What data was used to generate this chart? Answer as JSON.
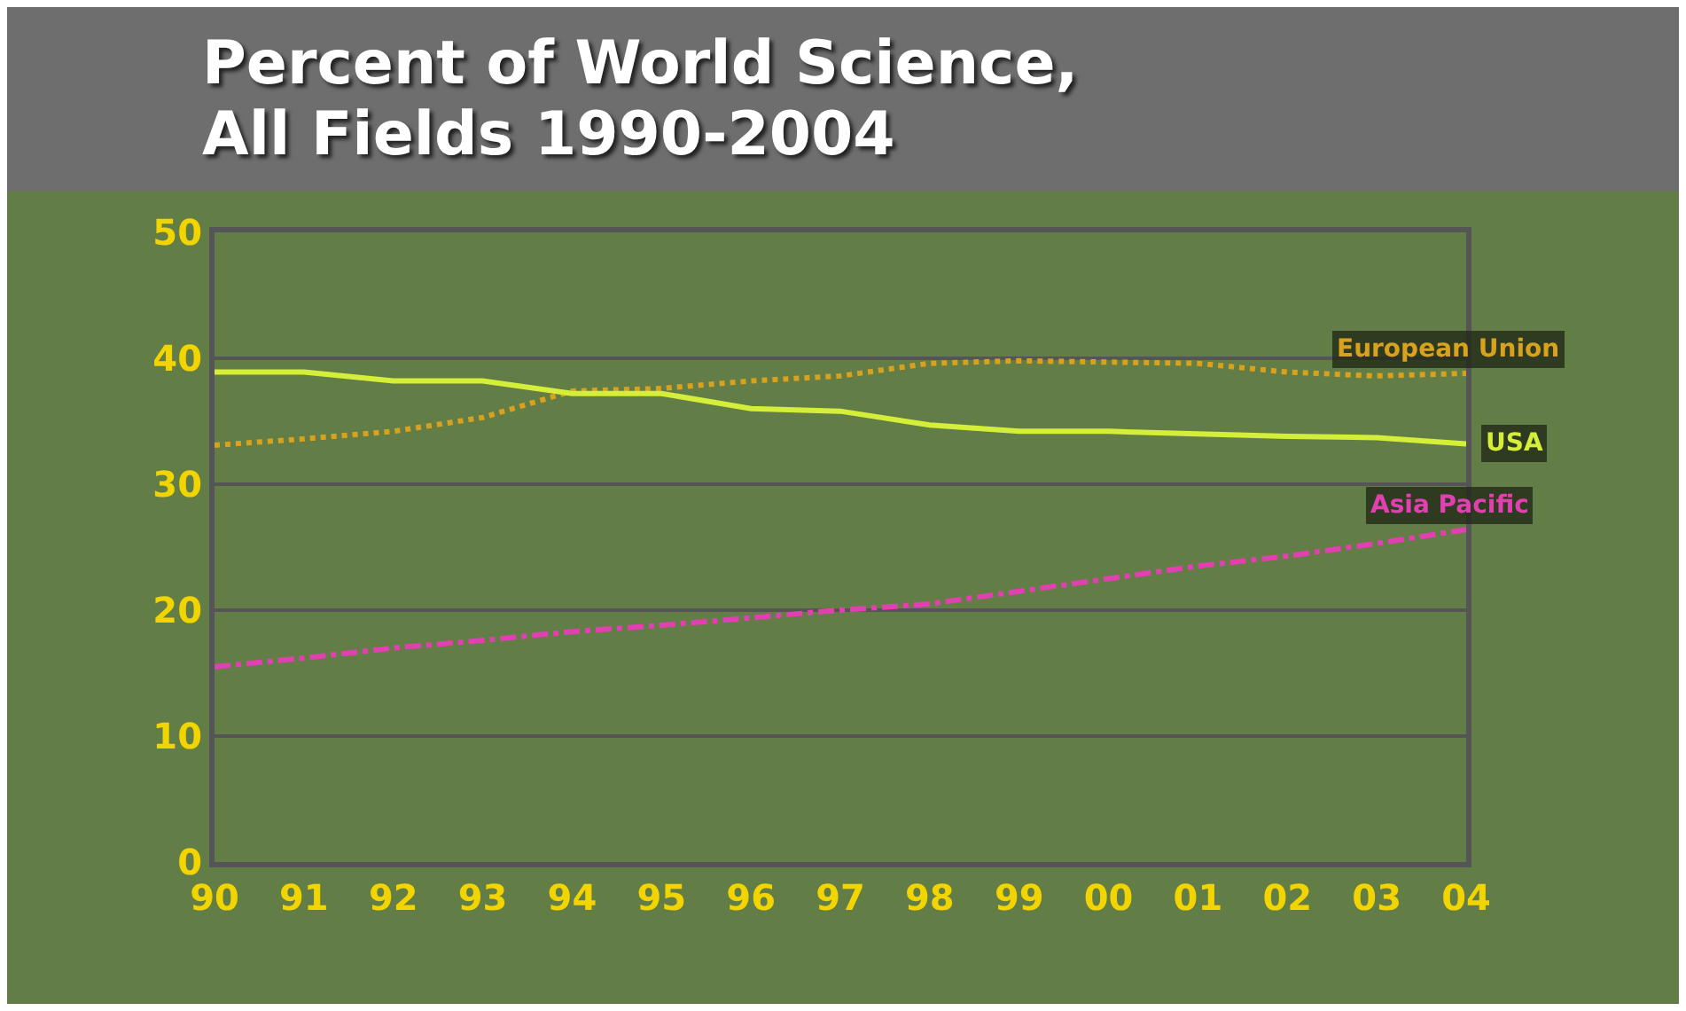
{
  "chart_data": {
    "type": "line",
    "title": "Percent of World Science,\nAll Fields 1990-2004",
    "categories": [
      "90",
      "91",
      "92",
      "93",
      "94",
      "95",
      "96",
      "97",
      "98",
      "99",
      "00",
      "01",
      "02",
      "03",
      "04"
    ],
    "series": [
      {
        "name": "European Union",
        "color": "#d9a21e",
        "line_style": "dotted",
        "values": [
          33.1,
          33.6,
          34.2,
          35.3,
          37.4,
          37.6,
          38.2,
          38.6,
          39.6,
          39.8,
          39.7,
          39.6,
          38.9,
          38.6,
          38.8
        ]
      },
      {
        "name": "USA",
        "color": "#d4ee3a",
        "line_style": "solid",
        "values": [
          38.9,
          38.9,
          38.2,
          38.2,
          37.2,
          37.2,
          36.0,
          35.8,
          34.7,
          34.2,
          34.2,
          34.0,
          33.8,
          33.7,
          33.2
        ]
      },
      {
        "name": "Asia Pacific",
        "color": "#e040b0",
        "line_style": "dashed",
        "values": [
          15.5,
          16.2,
          17.0,
          17.6,
          18.3,
          18.8,
          19.4,
          20.0,
          20.5,
          21.5,
          22.5,
          23.5,
          24.3,
          25.3,
          26.4
        ]
      }
    ],
    "ylim": [
      0,
      50
    ],
    "yticks": [
      0,
      10,
      20,
      30,
      40,
      50
    ],
    "grid": "y",
    "legend": false,
    "marker": "none"
  }
}
